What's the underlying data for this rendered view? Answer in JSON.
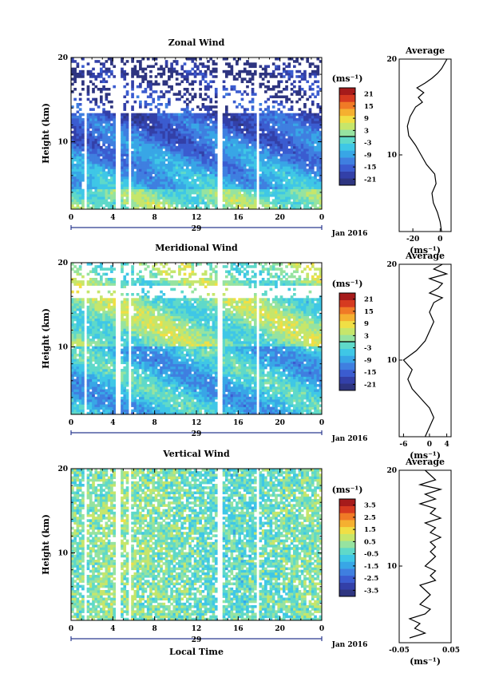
{
  "chart_data": [
    {
      "type": "heatmap",
      "title": "Zonal Wind",
      "ylabel": "Height (km)",
      "xlim": [
        0,
        24
      ],
      "ylim": [
        2,
        20
      ],
      "x_ticks": [
        "0",
        "4",
        "8",
        "12",
        "16",
        "20",
        "0"
      ],
      "y_ticks": [
        "10",
        "20"
      ],
      "date_label": "29",
      "month_label": "Jan 2016",
      "colorbar": {
        "unit": "(ms⁻¹)",
        "range": [
          -24,
          24
        ],
        "ticks": [
          "21",
          "15",
          "9",
          "3",
          "-3",
          "-9",
          "-15",
          "-21"
        ],
        "zero_line": 0
      },
      "profile": {
        "title": "Average",
        "xlabel": "(ms⁻¹)",
        "x_ticks": [
          "-20",
          "0"
        ],
        "xlim": [
          -30,
          8
        ],
        "heights": [
          2,
          3,
          4,
          5,
          6,
          7,
          8,
          9,
          10,
          11,
          12,
          13,
          14,
          15,
          15.5,
          16,
          16.5,
          17,
          17.5,
          18,
          18.5,
          19,
          19.5,
          20
        ],
        "values": [
          1,
          0,
          -2,
          -5,
          -6,
          -3,
          -4,
          -10,
          -14,
          -18,
          -23,
          -24,
          -22,
          -18,
          -13,
          -16,
          -12,
          -17,
          -11,
          -6,
          -2,
          1,
          3,
          5
        ]
      }
    },
    {
      "type": "heatmap",
      "title": "Meridional Wind",
      "ylabel": "Height (km)",
      "xlim": [
        0,
        24
      ],
      "ylim": [
        2,
        20
      ],
      "x_ticks": [
        "0",
        "4",
        "8",
        "12",
        "16",
        "20",
        "0"
      ],
      "y_ticks": [
        "10",
        "20"
      ],
      "date_label": "29",
      "month_label": "Jan 2016",
      "colorbar": {
        "unit": "(ms⁻¹)",
        "range": [
          -24,
          24
        ],
        "ticks": [
          "21",
          "15",
          "9",
          "3",
          "-3",
          "-9",
          "-15",
          "-21"
        ],
        "zero_line": 0
      },
      "profile": {
        "title": "Average",
        "xlabel": "(ms⁻¹)",
        "x_ticks": [
          "-6",
          "0",
          "4"
        ],
        "xlim": [
          -7,
          5
        ],
        "heights": [
          2,
          3,
          4,
          5,
          6,
          7,
          8,
          9,
          10,
          11,
          12,
          13,
          14,
          15,
          16,
          16.5,
          17,
          17.5,
          18,
          18.5,
          19,
          19.5,
          20
        ],
        "values": [
          -1,
          0,
          1,
          0,
          -2,
          -4,
          -5,
          -4,
          -6,
          -3,
          -1,
          0,
          1,
          0,
          1,
          3,
          0,
          2,
          3,
          0,
          4,
          1,
          3
        ]
      }
    },
    {
      "type": "heatmap",
      "title": "Vertical Wind",
      "ylabel": "Height (km)",
      "xlabel": "Local Time",
      "xlim": [
        0,
        24
      ],
      "ylim": [
        2,
        20
      ],
      "x_ticks": [
        "0",
        "4",
        "8",
        "12",
        "16",
        "20",
        "0"
      ],
      "y_ticks": [
        "10",
        "20"
      ],
      "date_label": "29",
      "month_label": "Jan 2016",
      "colorbar": {
        "unit": "(ms⁻¹)",
        "range": [
          -4,
          4
        ],
        "ticks": [
          "3.5",
          "2.5",
          "1.5",
          "0.5",
          "-0.5",
          "-1.5",
          "-2.5",
          "-3.5"
        ]
      },
      "profile": {
        "title": "Average",
        "xlabel": "(ms⁻¹)",
        "x_ticks": [
          "-0.05",
          "0.05"
        ],
        "xlim": [
          -0.05,
          0.05
        ],
        "heights": [
          2.5,
          3,
          3.5,
          4,
          4.5,
          5,
          5.5,
          6,
          6.5,
          7,
          7.5,
          8,
          8.5,
          9,
          9.5,
          10,
          10.5,
          11,
          11.5,
          12,
          12.5,
          13,
          13.5,
          14,
          14.5,
          15,
          15.5,
          16,
          16.5,
          17,
          17.5,
          18,
          18.5,
          19,
          19.5,
          20
        ],
        "values": [
          -0.03,
          0.0,
          -0.02,
          -0.01,
          -0.03,
          0.0,
          0.01,
          -0.01,
          0.0,
          0.01,
          0.0,
          -0.01,
          0.02,
          0.01,
          0.02,
          0.0,
          0.01,
          0.02,
          0.01,
          0.02,
          0.01,
          0.03,
          0.01,
          0.02,
          0.0,
          0.03,
          0.01,
          0.02,
          -0.01,
          0.02,
          0.0,
          0.03,
          -0.01,
          0.02,
          0.01,
          0.0
        ]
      }
    }
  ]
}
